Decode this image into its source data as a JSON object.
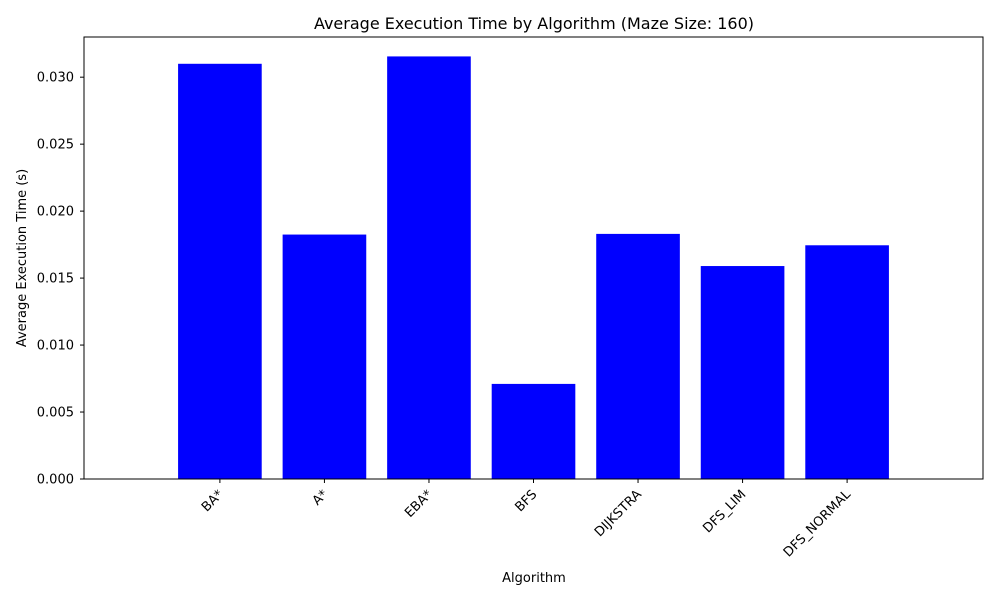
{
  "chart_data": {
    "type": "bar",
    "title": "Average Execution Time by Algorithm (Maze Size: 160)",
    "xlabel": "Algorithm",
    "ylabel": "Average Execution Time (s)",
    "categories": [
      "BA*",
      "A*",
      "EBA*",
      "BFS",
      "DIJKSTRA",
      "DFS_LIM",
      "DFS_NORMAL"
    ],
    "values": [
      0.031,
      0.01825,
      0.03155,
      0.0071,
      0.0183,
      0.0159,
      0.01745
    ],
    "ylim": [
      0,
      0.033
    ],
    "yticks": [
      "0.000",
      "0.005",
      "0.010",
      "0.015",
      "0.020",
      "0.025",
      "0.030"
    ],
    "bar_color": "#0000ff",
    "grid": false,
    "legend": "none"
  }
}
